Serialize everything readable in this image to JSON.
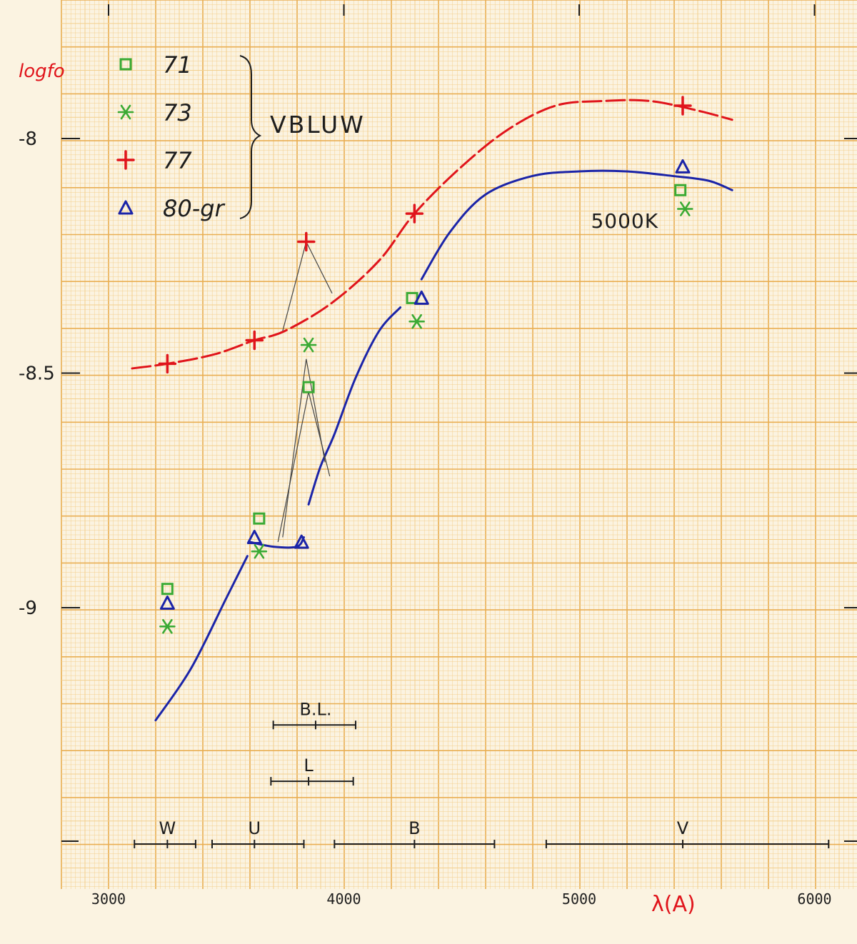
{
  "colors": {
    "paper": "#fbf3e1",
    "grid_minor": "#f3cf8d",
    "grid_major": "#e9ae52",
    "ink": "#1d1d1d",
    "red": "#e0141b",
    "blue": "#1b24a8",
    "green": "#3aaa34",
    "pencil": "#444444"
  },
  "chart_data": {
    "type": "scatter",
    "ylabel": "logfo",
    "xlabel": "λ(A)",
    "xlim": [
      2800,
      6100
    ],
    "ylim": [
      -9.5,
      -7.7
    ],
    "x_ticks": [
      {
        "value": 3000,
        "label": "3000"
      },
      {
        "value": 4000,
        "label": "4000"
      },
      {
        "value": 5000,
        "label": "5000"
      },
      {
        "value": 6000,
        "label": "6000"
      }
    ],
    "y_ticks": [
      {
        "value": -8,
        "label": "-8"
      },
      {
        "value": -8.5,
        "label": "-8.5"
      },
      {
        "value": -9,
        "label": "-9"
      }
    ],
    "grid": true,
    "legend": {
      "placement": "top-left",
      "group_label": "VBLUW",
      "entries": [
        {
          "symbol": "square",
          "label": "71",
          "color": "green"
        },
        {
          "symbol": "asterisk",
          "label": "73",
          "color": "green"
        },
        {
          "symbol": "plus",
          "label": "77",
          "color": "red"
        },
        {
          "symbol": "triangle",
          "label": "80-gr",
          "color": "blue"
        }
      ]
    },
    "series": [
      {
        "name": "71",
        "symbol": "square",
        "color": "green",
        "points": [
          [
            3250,
            -8.96
          ],
          [
            3640,
            -8.81
          ],
          [
            3850,
            -8.53
          ],
          [
            4290,
            -8.34
          ],
          [
            5430,
            -8.11
          ]
        ]
      },
      {
        "name": "73",
        "symbol": "asterisk",
        "color": "green",
        "points": [
          [
            3250,
            -9.04
          ],
          [
            3640,
            -8.88
          ],
          [
            3850,
            -8.44
          ],
          [
            4310,
            -8.39
          ],
          [
            5450,
            -8.15
          ]
        ]
      },
      {
        "name": "77",
        "symbol": "plus",
        "color": "red",
        "points": [
          [
            3250,
            -8.48
          ],
          [
            3620,
            -8.43
          ],
          [
            3840,
            -8.22
          ],
          [
            4300,
            -8.16
          ],
          [
            5440,
            -7.93
          ]
        ]
      },
      {
        "name": "80-gr",
        "symbol": "triangle",
        "color": "blue",
        "points": [
          [
            3250,
            -8.99
          ],
          [
            3620,
            -8.85
          ],
          [
            3820,
            -8.86
          ],
          [
            4330,
            -8.34
          ],
          [
            5440,
            -8.06
          ]
        ]
      }
    ],
    "curves": [
      {
        "color": "red",
        "dashed": true,
        "points": [
          [
            3100,
            -8.49
          ],
          [
            3250,
            -8.48
          ],
          [
            3450,
            -8.46
          ],
          [
            3620,
            -8.43
          ],
          [
            3750,
            -8.41
          ],
          [
            3950,
            -8.35
          ],
          [
            4150,
            -8.26
          ],
          [
            4300,
            -8.16
          ],
          [
            4500,
            -8.06
          ],
          [
            4700,
            -7.98
          ],
          [
            4900,
            -7.93
          ],
          [
            5100,
            -7.92
          ],
          [
            5300,
            -7.92
          ],
          [
            5500,
            -7.94
          ],
          [
            5650,
            -7.96
          ]
        ]
      },
      {
        "color": "blue",
        "dashed": false,
        "points": [
          [
            3200,
            -9.24
          ],
          [
            3350,
            -9.13
          ],
          [
            3500,
            -8.98
          ],
          [
            3590,
            -8.89
          ]
        ]
      },
      {
        "color": "blue",
        "dashed": false,
        "points": [
          [
            3600,
            -8.86
          ],
          [
            3700,
            -8.87
          ],
          [
            3800,
            -8.87
          ],
          [
            3830,
            -8.85
          ]
        ]
      },
      {
        "color": "blue",
        "dashed": false,
        "points": [
          [
            3850,
            -8.78
          ],
          [
            3900,
            -8.7
          ],
          [
            3960,
            -8.63
          ],
          [
            4050,
            -8.51
          ],
          [
            4150,
            -8.41
          ],
          [
            4240,
            -8.36
          ]
        ]
      },
      {
        "color": "blue",
        "dashed": false,
        "points": [
          [
            4330,
            -8.3
          ],
          [
            4450,
            -8.2
          ],
          [
            4600,
            -8.12
          ],
          [
            4800,
            -8.08
          ],
          [
            5000,
            -8.07
          ],
          [
            5200,
            -8.07
          ],
          [
            5400,
            -8.08
          ],
          [
            5550,
            -8.09
          ],
          [
            5650,
            -8.11
          ]
        ]
      }
    ],
    "guide_lines": [
      {
        "color": "pencil",
        "points": [
          [
            3740,
            -8.41
          ],
          [
            3840,
            -8.22
          ],
          [
            3950,
            -8.33
          ]
        ]
      },
      {
        "color": "pencil",
        "points": [
          [
            3740,
            -8.85
          ],
          [
            3840,
            -8.47
          ],
          [
            3920,
            -8.69
          ]
        ]
      },
      {
        "color": "pencil",
        "points": [
          [
            3720,
            -8.86
          ],
          [
            3850,
            -8.54
          ],
          [
            3940,
            -8.72
          ]
        ]
      }
    ],
    "annotations": [
      {
        "text": "5000K",
        "x": 5050,
        "y": -8.19
      }
    ],
    "band_ranges": [
      {
        "label": "B.L.",
        "start": 3700,
        "end": 4050,
        "center": 3880,
        "y": -9.25
      },
      {
        "label": "L",
        "start": 3690,
        "end": 4040,
        "center": 3850,
        "y": -9.37
      }
    ],
    "filter_bands": [
      {
        "label": "W",
        "start": 3110,
        "end": 3370,
        "center": 3250
      },
      {
        "label": "U",
        "start": 3440,
        "end": 3830,
        "center": 3620
      },
      {
        "label": "B",
        "start": 3960,
        "end": 4640,
        "center": 4300
      },
      {
        "label": "V",
        "start": 4860,
        "end": 6060,
        "center": 5440
      }
    ]
  }
}
